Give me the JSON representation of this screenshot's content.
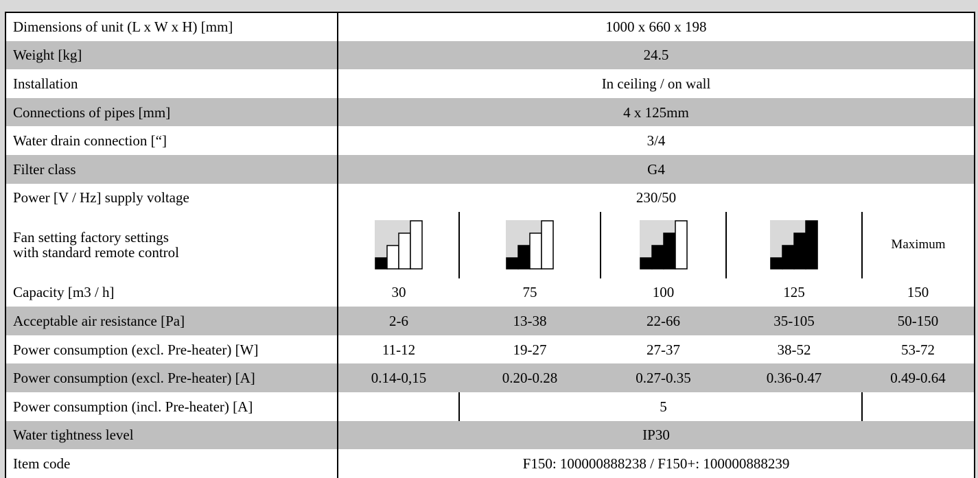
{
  "rows": [
    {
      "label": "Dimensions of unit (L x W x H) [mm]",
      "value": "1000 x 660 x 198"
    },
    {
      "label": "Weight [kg]",
      "value": "24.5"
    },
    {
      "label": "Installation",
      "value": "In ceiling / on wall"
    },
    {
      "label": "Connections of pipes [mm]",
      "value": "4 x 125mm"
    },
    {
      "label": "Water drain connection [“]",
      "value": "3/4"
    },
    {
      "label": "Filter class",
      "value": "G4"
    },
    {
      "label": "Power [V / Hz] supply voltage",
      "value": "230/50"
    }
  ],
  "fan_setting": {
    "label_line1": "Fan setting factory settings",
    "label_line2": "with standard remote control",
    "settings": [
      {
        "icon": "fan-level-1-icon",
        "level": 1
      },
      {
        "icon": "fan-level-2-icon",
        "level": 2
      },
      {
        "icon": "fan-level-3-icon",
        "level": 3
      },
      {
        "icon": "fan-level-4-icon",
        "level": 4
      }
    ],
    "last": "Maximum"
  },
  "capacity": {
    "label": "Capacity [m3 / h]",
    "values": [
      "30",
      "75",
      "100",
      "125",
      "150"
    ]
  },
  "air_resistance": {
    "label": "Acceptable air resistance [Pa]",
    "values": [
      "2-6",
      "13-38",
      "22-66",
      "35-105",
      "50-150"
    ]
  },
  "power_w": {
    "label": "Power consumption (excl. Pre-heater) [W]",
    "values": [
      "11-12",
      "19-27",
      "27-37",
      "38-52",
      "53-72"
    ]
  },
  "power_a": {
    "label": "Power consumption (excl. Pre-heater) [A]",
    "values": [
      "0.14-0,15",
      "0.20-0.28",
      "0.27-0.35",
      "0.36-0.47",
      "0.49-0.64"
    ]
  },
  "power_incl": {
    "label": "Power consumption (incl. Pre-heater) [A]",
    "value": "5"
  },
  "water_tightness": {
    "label": "Water tightness level",
    "value": "IP30"
  },
  "item_code": {
    "label": "Item code",
    "value": "F150: 100000888238 / F150+: 100000888239"
  },
  "colors": {
    "grey_row": "#bfbfbf",
    "white_row": "#ffffff",
    "icon_bg": "#d9d9d9",
    "icon_fill": "#000000"
  }
}
